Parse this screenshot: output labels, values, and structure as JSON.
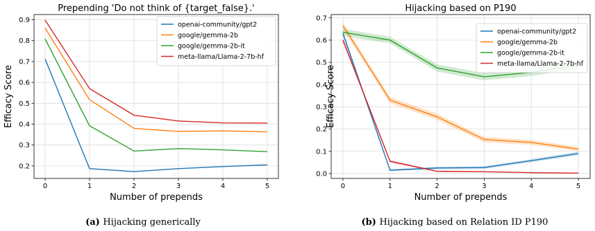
{
  "chart_data": [
    {
      "type": "line",
      "title": "Prepending 'Do not think of {target_false}.'",
      "xlabel": "Number of prepends",
      "ylabel": "Efficacy Score",
      "caption_label": "(a)",
      "caption_text": "Hijacking generically",
      "x": [
        0,
        1,
        2,
        3,
        4,
        5
      ],
      "xlim": [
        -0.25,
        5.25
      ],
      "ylim": [
        0.14,
        0.925
      ],
      "yticks": [
        0.2,
        0.3,
        0.4,
        0.5,
        0.6,
        0.7,
        0.8,
        0.9
      ],
      "ytick_labels": [
        "0.2",
        "0.3",
        "0.4",
        "0.5",
        "0.6",
        "0.7",
        "0.8",
        "0.9"
      ],
      "grid": true,
      "legend": "top-right",
      "series": [
        {
          "name": "openai-community/gpt2",
          "color": "#1f77b4",
          "values": [
            0.712,
            0.187,
            0.173,
            0.187,
            0.197,
            0.205
          ]
        },
        {
          "name": "google/gemma-2b",
          "color": "#ff7f0e",
          "values": [
            0.86,
            0.517,
            0.38,
            0.365,
            0.368,
            0.363
          ]
        },
        {
          "name": "google/gemma-2b-it",
          "color": "#2ca02c",
          "values": [
            0.808,
            0.392,
            0.271,
            0.283,
            0.277,
            0.268
          ]
        },
        {
          "name": "meta-llama/Llama-2-7b-hf",
          "color": "#d62728",
          "values": [
            0.898,
            0.57,
            0.443,
            0.415,
            0.406,
            0.405
          ]
        }
      ]
    },
    {
      "type": "line",
      "title": "Hijacking based on P190",
      "xlabel": "Number of prepends",
      "ylabel": "Efficacy Score",
      "caption_label": "(b)",
      "caption_text": "Hijacking based on Relation ID P190",
      "x": [
        0,
        1,
        2,
        3,
        4,
        5
      ],
      "xlim": [
        -0.25,
        5.25
      ],
      "ylim": [
        -0.022,
        0.715
      ],
      "yticks": [
        0.0,
        0.1,
        0.2,
        0.3,
        0.4,
        0.5,
        0.6,
        0.7
      ],
      "ytick_labels": [
        "0.0",
        "0.1",
        "0.2",
        "0.3",
        "0.4",
        "0.5",
        "0.6",
        "0.7"
      ],
      "grid": true,
      "legend": "top-right",
      "series": [
        {
          "name": "openai-community/gpt2",
          "color": "#1f77b4",
          "values": [
            0.63,
            0.015,
            0.025,
            0.027,
            0.058,
            0.09
          ],
          "ci": [
            0.012,
            0.004,
            0.006,
            0.006,
            0.007,
            0.008
          ]
        },
        {
          "name": "google/gemma-2b",
          "color": "#ff7f0e",
          "values": [
            0.665,
            0.33,
            0.255,
            0.153,
            0.14,
            0.11
          ],
          "ci": [
            0.015,
            0.014,
            0.014,
            0.012,
            0.011,
            0.01
          ]
        },
        {
          "name": "google/gemma-2b-it",
          "color": "#2ca02c",
          "values": [
            0.635,
            0.6,
            0.475,
            0.435,
            0.455,
            0.487
          ],
          "ci": [
            0.016,
            0.015,
            0.016,
            0.016,
            0.016,
            0.016
          ]
        },
        {
          "name": "meta-llama/Llama-2-7b-hf",
          "color": "#d62728",
          "values": [
            0.6,
            0.055,
            0.01,
            0.008,
            0.004,
            0.002
          ],
          "ci": [
            0.012,
            0.006,
            0.003,
            0.002,
            0.002,
            0.002
          ]
        }
      ]
    }
  ]
}
